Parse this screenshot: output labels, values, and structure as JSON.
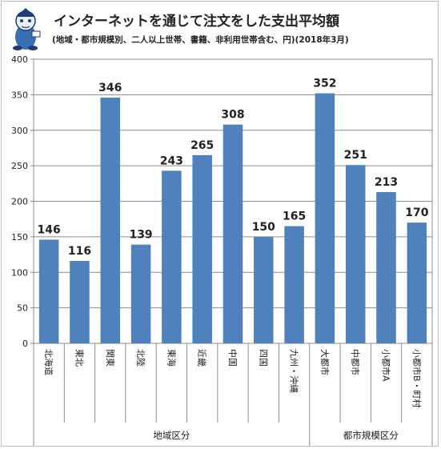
{
  "chart_data": {
    "type": "bar",
    "title": "インターネットを通じて注文をした支出平均額",
    "subtitle": "(地域・都市規模別、二人以上世帯、書籍、非利用世帯含む、円)(2018年3月)",
    "categories": [
      "北海道",
      "東北",
      "関東",
      "北陸",
      "東海",
      "近畿",
      "中国",
      "四国",
      "九州・沖縄",
      "大都市",
      "中都市",
      "小都市A",
      "小都市B・町村"
    ],
    "values": [
      146,
      116,
      346,
      139,
      243,
      265,
      308,
      150,
      165,
      352,
      251,
      213,
      170
    ],
    "groups": [
      {
        "label": "地域区分",
        "count": 9
      },
      {
        "label": "都市規模区分",
        "count": 4
      }
    ],
    "yticks": [
      0,
      50,
      100,
      150,
      200,
      250,
      300,
      350,
      400
    ],
    "ylim": [
      0,
      400
    ],
    "grid": true,
    "bar_color": "#4f81bd"
  }
}
